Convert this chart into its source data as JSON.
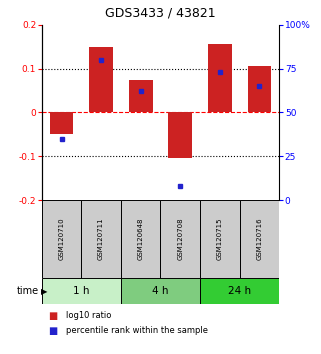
{
  "title": "GDS3433 / 43821",
  "samples": [
    "GSM120710",
    "GSM120711",
    "GSM120648",
    "GSM120708",
    "GSM120715",
    "GSM120716"
  ],
  "log10_ratio": [
    -0.05,
    0.15,
    0.075,
    -0.105,
    0.155,
    0.105
  ],
  "percentile_rank": [
    35,
    80,
    62,
    8,
    73,
    65
  ],
  "groups": [
    {
      "label": "1 h",
      "indices": [
        0,
        1
      ],
      "color": "#c8f0c8"
    },
    {
      "label": "4 h",
      "indices": [
        2,
        3
      ],
      "color": "#7fcc7f"
    },
    {
      "label": "24 h",
      "indices": [
        4,
        5
      ],
      "color": "#33cc33"
    }
  ],
  "ylim_left": [
    -0.2,
    0.2
  ],
  "ylim_right": [
    0,
    100
  ],
  "yticks_left": [
    -0.2,
    -0.1,
    0.0,
    0.1,
    0.2
  ],
  "ytick_labels_left": [
    "-0.2",
    "-0.1",
    "0",
    "0.1",
    "0.2"
  ],
  "yticks_right": [
    0,
    25,
    50,
    75,
    100
  ],
  "ytick_labels_right": [
    "0",
    "25",
    "50",
    "75",
    "100%"
  ],
  "hlines_dotted": [
    -0.1,
    0.1
  ],
  "hline_dashed": 0.0,
  "bar_color": "#cc2222",
  "point_color": "#2222cc",
  "bar_width": 0.6,
  "legend_red": "log10 ratio",
  "legend_blue": "percentile rank within the sample",
  "time_label": "time",
  "sample_box_color": "#cccccc",
  "xlim": [
    -0.5,
    5.5
  ]
}
